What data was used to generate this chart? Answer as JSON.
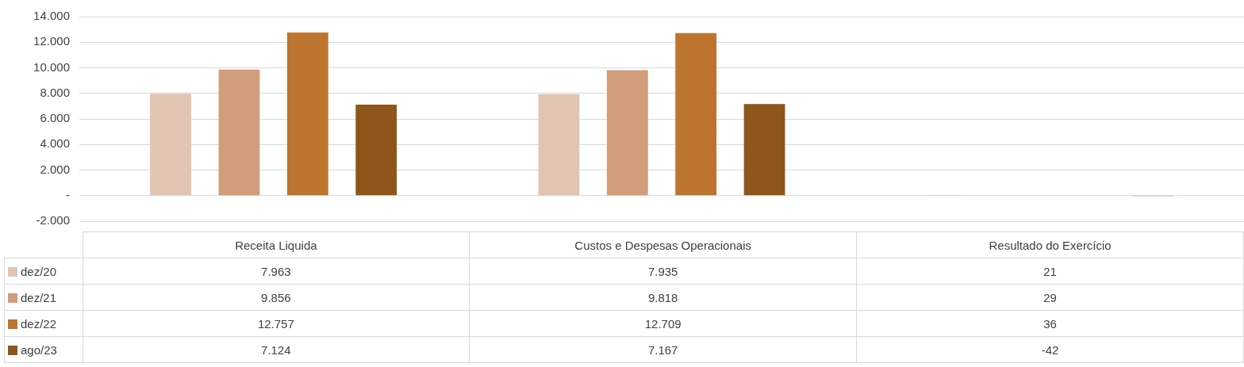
{
  "chart_data": {
    "type": "bar",
    "categories": [
      "Receita Liquida",
      "Custos e Despesas Operacionais",
      "Resultado do Exercício"
    ],
    "series": [
      {
        "name": "dez/20",
        "color": "#e3c4b2",
        "values": [
          7963,
          7935,
          21
        ],
        "value_labels": [
          "7.963",
          "7.935",
          "21"
        ]
      },
      {
        "name": "dez/21",
        "color": "#d19d7b",
        "values": [
          9856,
          9818,
          29
        ],
        "value_labels": [
          "9.856",
          "9.818",
          "29"
        ]
      },
      {
        "name": "dez/22",
        "color": "#bd742e",
        "values": [
          12757,
          12709,
          36
        ],
        "value_labels": [
          "12.757",
          "12.709",
          "36"
        ]
      },
      {
        "name": "ago/23",
        "color": "#8f561c",
        "values": [
          7124,
          7167,
          -42
        ],
        "value_labels": [
          "7.124",
          "7.167",
          "-42"
        ]
      }
    ],
    "ylim": [
      -2000,
      14000
    ],
    "yticks": [
      {
        "value": -2000,
        "label": "-2.000"
      },
      {
        "value": 0,
        "label": "-"
      },
      {
        "value": 2000,
        "label": "2.000"
      },
      {
        "value": 4000,
        "label": "4.000"
      },
      {
        "value": 6000,
        "label": "6.000"
      },
      {
        "value": 8000,
        "label": "8.000"
      },
      {
        "value": 10000,
        "label": "10.000"
      },
      {
        "value": 12000,
        "label": "12.000"
      },
      {
        "value": 14000,
        "label": "14.000"
      }
    ],
    "grid": "y",
    "legend": "bottom left"
  }
}
